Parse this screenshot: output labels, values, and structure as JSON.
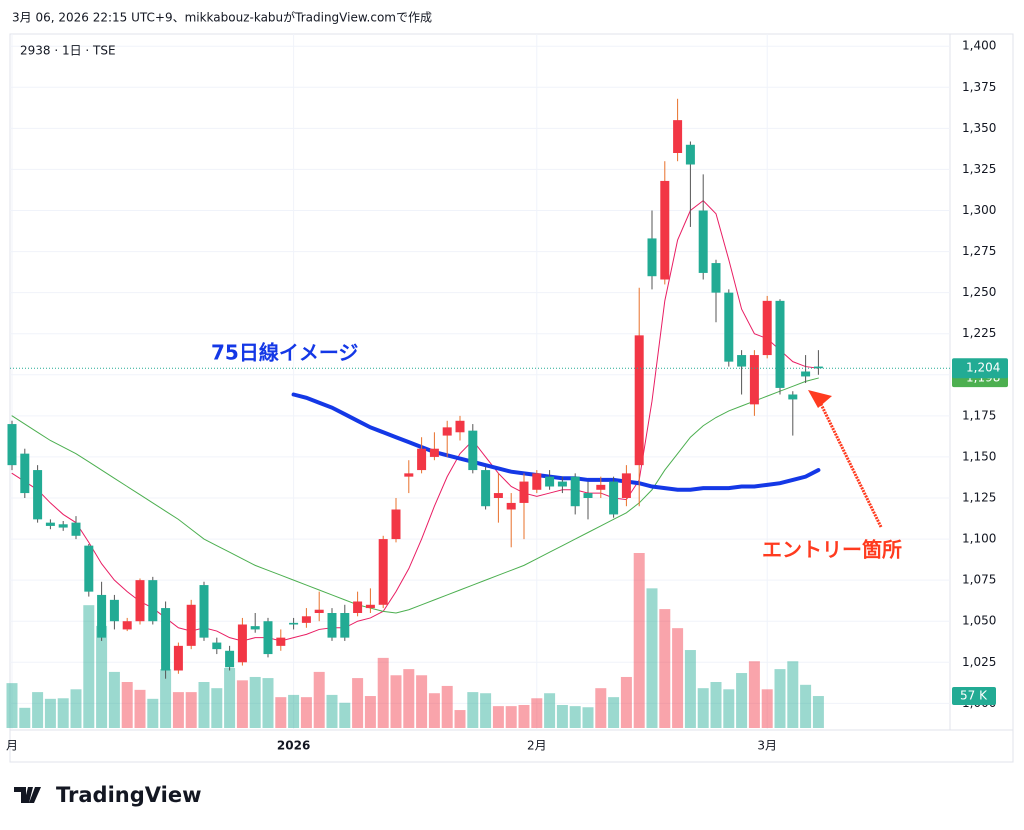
{
  "header": {
    "caption": "3月 06, 2026 22:15 UTC+9、mikkabouz-kabuがTradingView.comで作成",
    "symbol": "2938 · 1日 · TSE"
  },
  "footer": {
    "logo": "TradingView"
  },
  "chart_data": {
    "type": "candlestick",
    "categories": [
      "月",
      null,
      null,
      null,
      null,
      null,
      null,
      null,
      null,
      null,
      null,
      null,
      null,
      null,
      null,
      null,
      null,
      null,
      null,
      null,
      null,
      null,
      "2026",
      null,
      null,
      null,
      null,
      null,
      null,
      null,
      null,
      null,
      null,
      null,
      null,
      null,
      null,
      null,
      null,
      null,
      null,
      "2月",
      null,
      null,
      null,
      null,
      null,
      null,
      null,
      null,
      null,
      null,
      null,
      null,
      null,
      null,
      null,
      null,
      null,
      "3月",
      null,
      null,
      null,
      null
    ],
    "open": [
      1170,
      1152,
      1142,
      1110,
      1109,
      1110,
      1096,
      1066,
      1063,
      1045,
      1050,
      1075,
      1058,
      1020,
      1035,
      1072,
      1037,
      1032,
      1025,
      1047,
      1050,
      1035,
      1049,
      1049,
      1055,
      1055,
      1055,
      1055,
      1058,
      1060,
      1100,
      1138,
      1142,
      1150,
      1163,
      1165,
      1166,
      1142,
      1125,
      1118,
      1122,
      1130,
      1138,
      1135,
      1138,
      1128,
      1130,
      1135,
      1125,
      1145,
      1283,
      1258,
      1335,
      1340,
      1300,
      1268,
      1250,
      1212,
      1182,
      1212,
      1245,
      1188,
      1202,
      1205
    ],
    "high": [
      1172,
      1155,
      1145,
      1112,
      1111,
      1114,
      1097,
      1074,
      1066,
      1052,
      1076,
      1077,
      1062,
      1037,
      1063,
      1074,
      1040,
      1035,
      1052,
      1055,
      1052,
      1045,
      1052,
      1058,
      1068,
      1058,
      1060,
      1068,
      1070,
      1102,
      1125,
      1148,
      1162,
      1165,
      1172,
      1175,
      1170,
      1144,
      1140,
      1128,
      1140,
      1142,
      1142,
      1138,
      1140,
      1135,
      1138,
      1138,
      1145,
      1253,
      1300,
      1330,
      1368,
      1342,
      1322,
      1270,
      1252,
      1215,
      1215,
      1248,
      1246,
      1190,
      1212,
      1215
    ],
    "low": [
      1142,
      1125,
      1110,
      1106,
      1105,
      1100,
      1065,
      1038,
      1045,
      1044,
      1048,
      1048,
      1015,
      1018,
      1033,
      1038,
      1030,
      1020,
      1023,
      1043,
      1028,
      1032,
      1045,
      1046,
      1050,
      1038,
      1038,
      1053,
      1055,
      1058,
      1098,
      1128,
      1140,
      1148,
      1150,
      1160,
      1140,
      1118,
      1110,
      1095,
      1100,
      1128,
      1130,
      1128,
      1115,
      1112,
      1125,
      1113,
      1120,
      1120,
      1252,
      1255,
      1330,
      1290,
      1258,
      1232,
      1205,
      1188,
      1175,
      1210,
      1188,
      1163,
      1195,
      1200
    ],
    "close": [
      1145,
      1128,
      1112,
      1108,
      1107,
      1102,
      1068,
      1040,
      1050,
      1050,
      1075,
      1050,
      1020,
      1035,
      1060,
      1040,
      1033,
      1022,
      1048,
      1045,
      1030,
      1040,
      1048,
      1053,
      1057,
      1040,
      1040,
      1062,
      1060,
      1100,
      1118,
      1140,
      1155,
      1155,
      1168,
      1172,
      1142,
      1120,
      1128,
      1122,
      1135,
      1140,
      1132,
      1132,
      1120,
      1125,
      1133,
      1115,
      1140,
      1224,
      1260,
      1318,
      1355,
      1328,
      1262,
      1250,
      1208,
      1205,
      1212,
      1245,
      1192,
      1185,
      1199,
      1204
    ],
    "volume": [
      80,
      36,
      64,
      52,
      53,
      69,
      219,
      182,
      100,
      82,
      68,
      52,
      105,
      64,
      64,
      82,
      71,
      107,
      85,
      91,
      89,
      55,
      59,
      55,
      100,
      59,
      45,
      89,
      57,
      125,
      94,
      105,
      94,
      62,
      75,
      32,
      64,
      62,
      39,
      39,
      41,
      53,
      62,
      41,
      39,
      37,
      71,
      55,
      91,
      312,
      249,
      212,
      178,
      139,
      71,
      82,
      69,
      98,
      119,
      69,
      105,
      119,
      77,
      57
    ],
    "volume_last_label": "57 K",
    "up_color": "#f23645",
    "down_color": "#22ab94",
    "series": [
      {
        "color": "#e91e63",
        "values": [
          1140,
          1135,
          1130,
          1122,
          1115,
          1110,
          1098,
          1085,
          1075,
          1068,
          1062,
          1058,
          1052,
          1046,
          1044,
          1046,
          1044,
          1040,
          1038,
          1040,
          1040,
          1038,
          1040,
          1042,
          1045,
          1046,
          1046,
          1050,
          1052,
          1056,
          1068,
          1082,
          1100,
          1120,
          1138,
          1152,
          1160,
          1150,
          1140,
          1132,
          1128,
          1126,
          1128,
          1130,
          1130,
          1128,
          1128,
          1125,
          1124,
          1136,
          1184,
          1245,
          1282,
          1300,
          1306,
          1298,
          1270,
          1240,
          1225,
          1222,
          1215,
          1208,
          1205,
          1204
        ]
      },
      {
        "color": "#4caf50",
        "last_label": "1,198",
        "values": [
          1175,
          1170,
          1165,
          1160,
          1156,
          1152,
          1147,
          1142,
          1137,
          1132,
          1127,
          1122,
          1117,
          1112,
          1106,
          1100,
          1096,
          1092,
          1088,
          1084,
          1081,
          1078,
          1075,
          1072,
          1069,
          1066,
          1063,
          1060,
          1058,
          1056,
          1055,
          1057,
          1060,
          1063,
          1066,
          1069,
          1072,
          1075,
          1078,
          1081,
          1084,
          1088,
          1092,
          1096,
          1100,
          1104,
          1108,
          1112,
          1116,
          1122,
          1130,
          1142,
          1152,
          1162,
          1169,
          1174,
          1178,
          1181,
          1184,
          1187,
          1190,
          1193,
          1196,
          1198
        ]
      },
      {
        "name": "75日線イメージ",
        "color": "#1438e6",
        "values": [
          null,
          null,
          null,
          null,
          null,
          null,
          null,
          null,
          null,
          null,
          null,
          null,
          null,
          null,
          null,
          null,
          null,
          null,
          null,
          null,
          null,
          null,
          1188,
          1186,
          1183,
          1180,
          1176,
          1172,
          1168,
          1165,
          1162,
          1159,
          1156,
          1153,
          1151,
          1149,
          1147,
          1145,
          1143,
          1141,
          1140,
          1139,
          1138,
          1137,
          1137,
          1136,
          1136,
          1136,
          1135,
          1134,
          1132,
          1131,
          1130,
          1130,
          1131,
          1131,
          1131,
          1132,
          1132,
          1133,
          1134,
          1136,
          1138,
          1142
        ]
      }
    ],
    "last_price_label": "1,204",
    "annotation": "エントリー箇所",
    "ylim": [
      985,
      1405
    ],
    "yticks": [
      {
        "value": 1000,
        "label": "1,000"
      },
      {
        "value": 1025,
        "label": "1,025"
      },
      {
        "value": 1050,
        "label": "1,050"
      },
      {
        "value": 1075,
        "label": "1,075"
      },
      {
        "value": 1100,
        "label": "1,100"
      },
      {
        "value": 1125,
        "label": "1,125"
      },
      {
        "value": 1150,
        "label": "1,150"
      },
      {
        "value": 1175,
        "label": "1,175"
      },
      {
        "value": 1200,
        "label": "1,200"
      },
      {
        "value": 1225,
        "label": "1,225"
      },
      {
        "value": 1250,
        "label": "1,250"
      },
      {
        "value": 1275,
        "label": "1,275"
      },
      {
        "value": 1300,
        "label": "1,300"
      },
      {
        "value": 1325,
        "label": "1,325"
      },
      {
        "value": 1350,
        "label": "1,350"
      },
      {
        "value": 1375,
        "label": "1,375"
      },
      {
        "value": 1400,
        "label": "1,400"
      }
    ],
    "grid": true
  }
}
